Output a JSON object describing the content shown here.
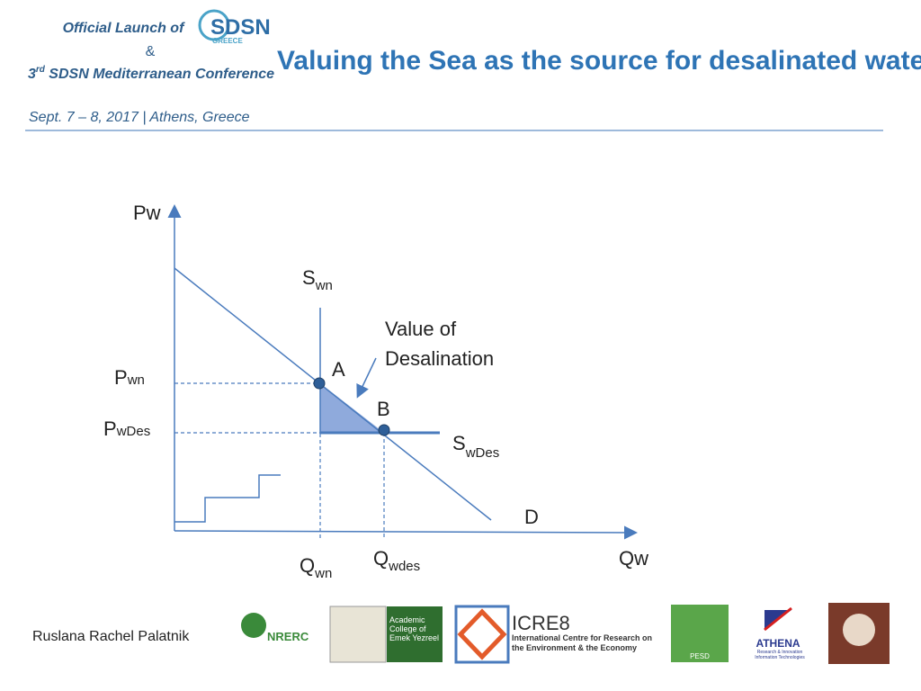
{
  "header": {
    "launch": "Official Launch of",
    "amp": "&",
    "conf_num": "3",
    "conf_sup": "rd",
    "conf_rest": " SDSN Mediterranean Conference",
    "date": "Sept. 7 – 8, 2017 | Athens, Greece",
    "logo_main": "SDSN",
    "logo_sub": "GREECE"
  },
  "title": "Valuing the Sea as the source for desalinated water",
  "diagram": {
    "y_axis": "Pw",
    "x_axis": "Qw",
    "supply_natural": {
      "main": "S",
      "sub": "wn"
    },
    "supply_des": {
      "main": "S",
      "sub": "wDes"
    },
    "demand": "D",
    "point_a": "A",
    "point_b": "B",
    "price_natural": {
      "main": "P",
      "sub": "wn"
    },
    "price_des": {
      "main": "P",
      "sub": "wDes"
    },
    "qty_natural": {
      "main": "Q",
      "sub": "wn"
    },
    "qty_des": {
      "main": "Q",
      "sub": "wdes"
    },
    "annotation": [
      "Value of",
      "Desalination"
    ]
  },
  "footer": {
    "author": "Ruslana Rachel Palatnik",
    "logos": [
      "NRERC",
      "Academic College of Emek Yezreel",
      "ICRE8",
      "International Centre for Research on the Environment & the Economy",
      "PESD",
      "ATHENA",
      "Research & Innovation Information Technologies"
    ]
  }
}
